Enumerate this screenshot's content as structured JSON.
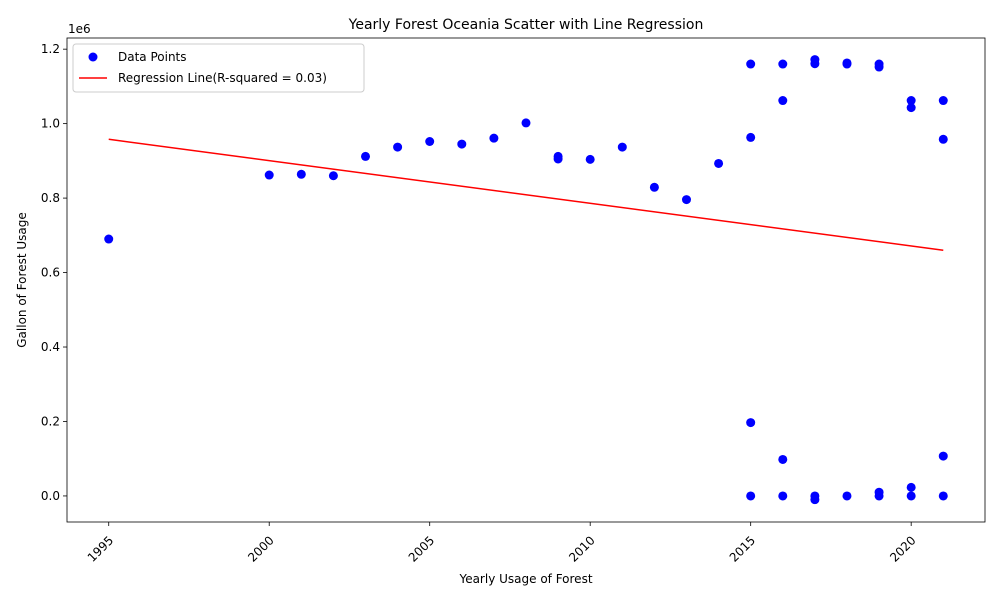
{
  "chart_data": {
    "type": "scatter",
    "title": "Yearly Forest Oceania Scatter with Line Regression",
    "xlabel": "Yearly Usage of Forest",
    "ylabel": "Gallon of Forest Usage",
    "y_offset_label": "1e6",
    "xlim": [
      1993.7,
      2022.3
    ],
    "ylim": [
      -70000,
      1230000
    ],
    "x_ticks": [
      1995,
      2000,
      2005,
      2010,
      2015,
      2020
    ],
    "y_ticks": [
      0.0,
      0.2,
      0.4,
      0.6,
      0.8,
      1.0,
      1.2
    ],
    "y_tick_labels": [
      "0.0",
      "0.2",
      "0.4",
      "0.6",
      "0.8",
      "1.0",
      "1.2"
    ],
    "x_tick_rotation": 45,
    "grid": false,
    "legend_position": "upper-left",
    "series": [
      {
        "name": "Data Points",
        "kind": "scatter",
        "color": "#0000ff",
        "points": [
          [
            1995,
            690000
          ],
          [
            2000,
            862000
          ],
          [
            2001,
            864000
          ],
          [
            2002,
            860000
          ],
          [
            2003,
            912000
          ],
          [
            2004,
            937000
          ],
          [
            2005,
            952000
          ],
          [
            2006,
            945000
          ],
          [
            2007,
            961000
          ],
          [
            2008,
            1002000
          ],
          [
            2009,
            912000
          ],
          [
            2009,
            905000
          ],
          [
            2010,
            904000
          ],
          [
            2011,
            937000
          ],
          [
            2012,
            829000
          ],
          [
            2013,
            796000
          ],
          [
            2014,
            893000
          ],
          [
            2015,
            1160000
          ],
          [
            2015,
            963000
          ],
          [
            2015,
            197000
          ],
          [
            2015,
            0
          ],
          [
            2016,
            1160000
          ],
          [
            2016,
            1062000
          ],
          [
            2016,
            98000
          ],
          [
            2016,
            0
          ],
          [
            2017,
            1172000
          ],
          [
            2017,
            1161000
          ],
          [
            2017,
            0
          ],
          [
            2017,
            -10000
          ],
          [
            2018,
            1163000
          ],
          [
            2018,
            1160000
          ],
          [
            2018,
            0
          ],
          [
            2019,
            1160000
          ],
          [
            2019,
            1152000
          ],
          [
            2019,
            10000
          ],
          [
            2019,
            0
          ],
          [
            2020,
            1062000
          ],
          [
            2020,
            1043000
          ],
          [
            2020,
            23000
          ],
          [
            2020,
            0
          ],
          [
            2021,
            1062000
          ],
          [
            2021,
            958000
          ],
          [
            2021,
            107000
          ],
          [
            2021,
            0
          ]
        ]
      },
      {
        "name": "Regression Line(R-squared = 0.03)",
        "kind": "line",
        "color": "#ff0000",
        "points": [
          [
            1995,
            958000
          ],
          [
            2021,
            660000
          ]
        ]
      }
    ]
  }
}
